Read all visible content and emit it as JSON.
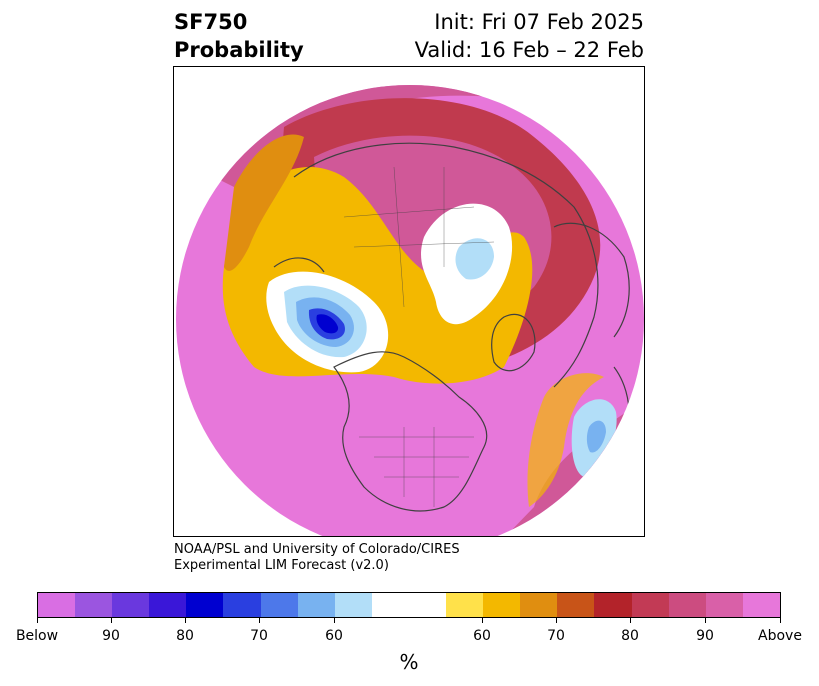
{
  "header": {
    "title_line1": "SF750",
    "title_line2": "Probability",
    "init_label": "Init: Fri 07 Feb 2025",
    "valid_label": "Valid: 16 Feb – 22 Feb"
  },
  "credit": {
    "line1": "NOAA/PSL and University of Colorado/CIRES",
    "line2": "Experimental LIM Forecast (v2.0)"
  },
  "colorbar": {
    "colors": [
      "#d96ee3",
      "#9b55e0",
      "#6a38de",
      "#3a17d8",
      "#0000d0",
      "#2a3fe0",
      "#4d78ea",
      "#78b2f0",
      "#b2def8",
      "#ffffff",
      "#ffe14a",
      "#f3b800",
      "#e08e10",
      "#c85418",
      "#b3232a",
      "#c23a55",
      "#cc4c80",
      "#d960a8",
      "#e777da"
    ],
    "tick_labels": [
      "Below",
      "90",
      "80",
      "70",
      "60",
      "60",
      "70",
      "80",
      "90",
      "Above"
    ],
    "unit_label": "%"
  },
  "map": {
    "projection": "north-polar-stereographic",
    "legend_colors": {
      "above_high": "#e777da",
      "above_mid": "#d05898",
      "above_low": "#c03a4e",
      "neutral_warm": "#f3b800",
      "neutral": "#ffffff",
      "below_low": "#b2def8",
      "below_mid": "#78b2f0",
      "below_high": "#0000d0",
      "coastline": "#404040"
    }
  }
}
